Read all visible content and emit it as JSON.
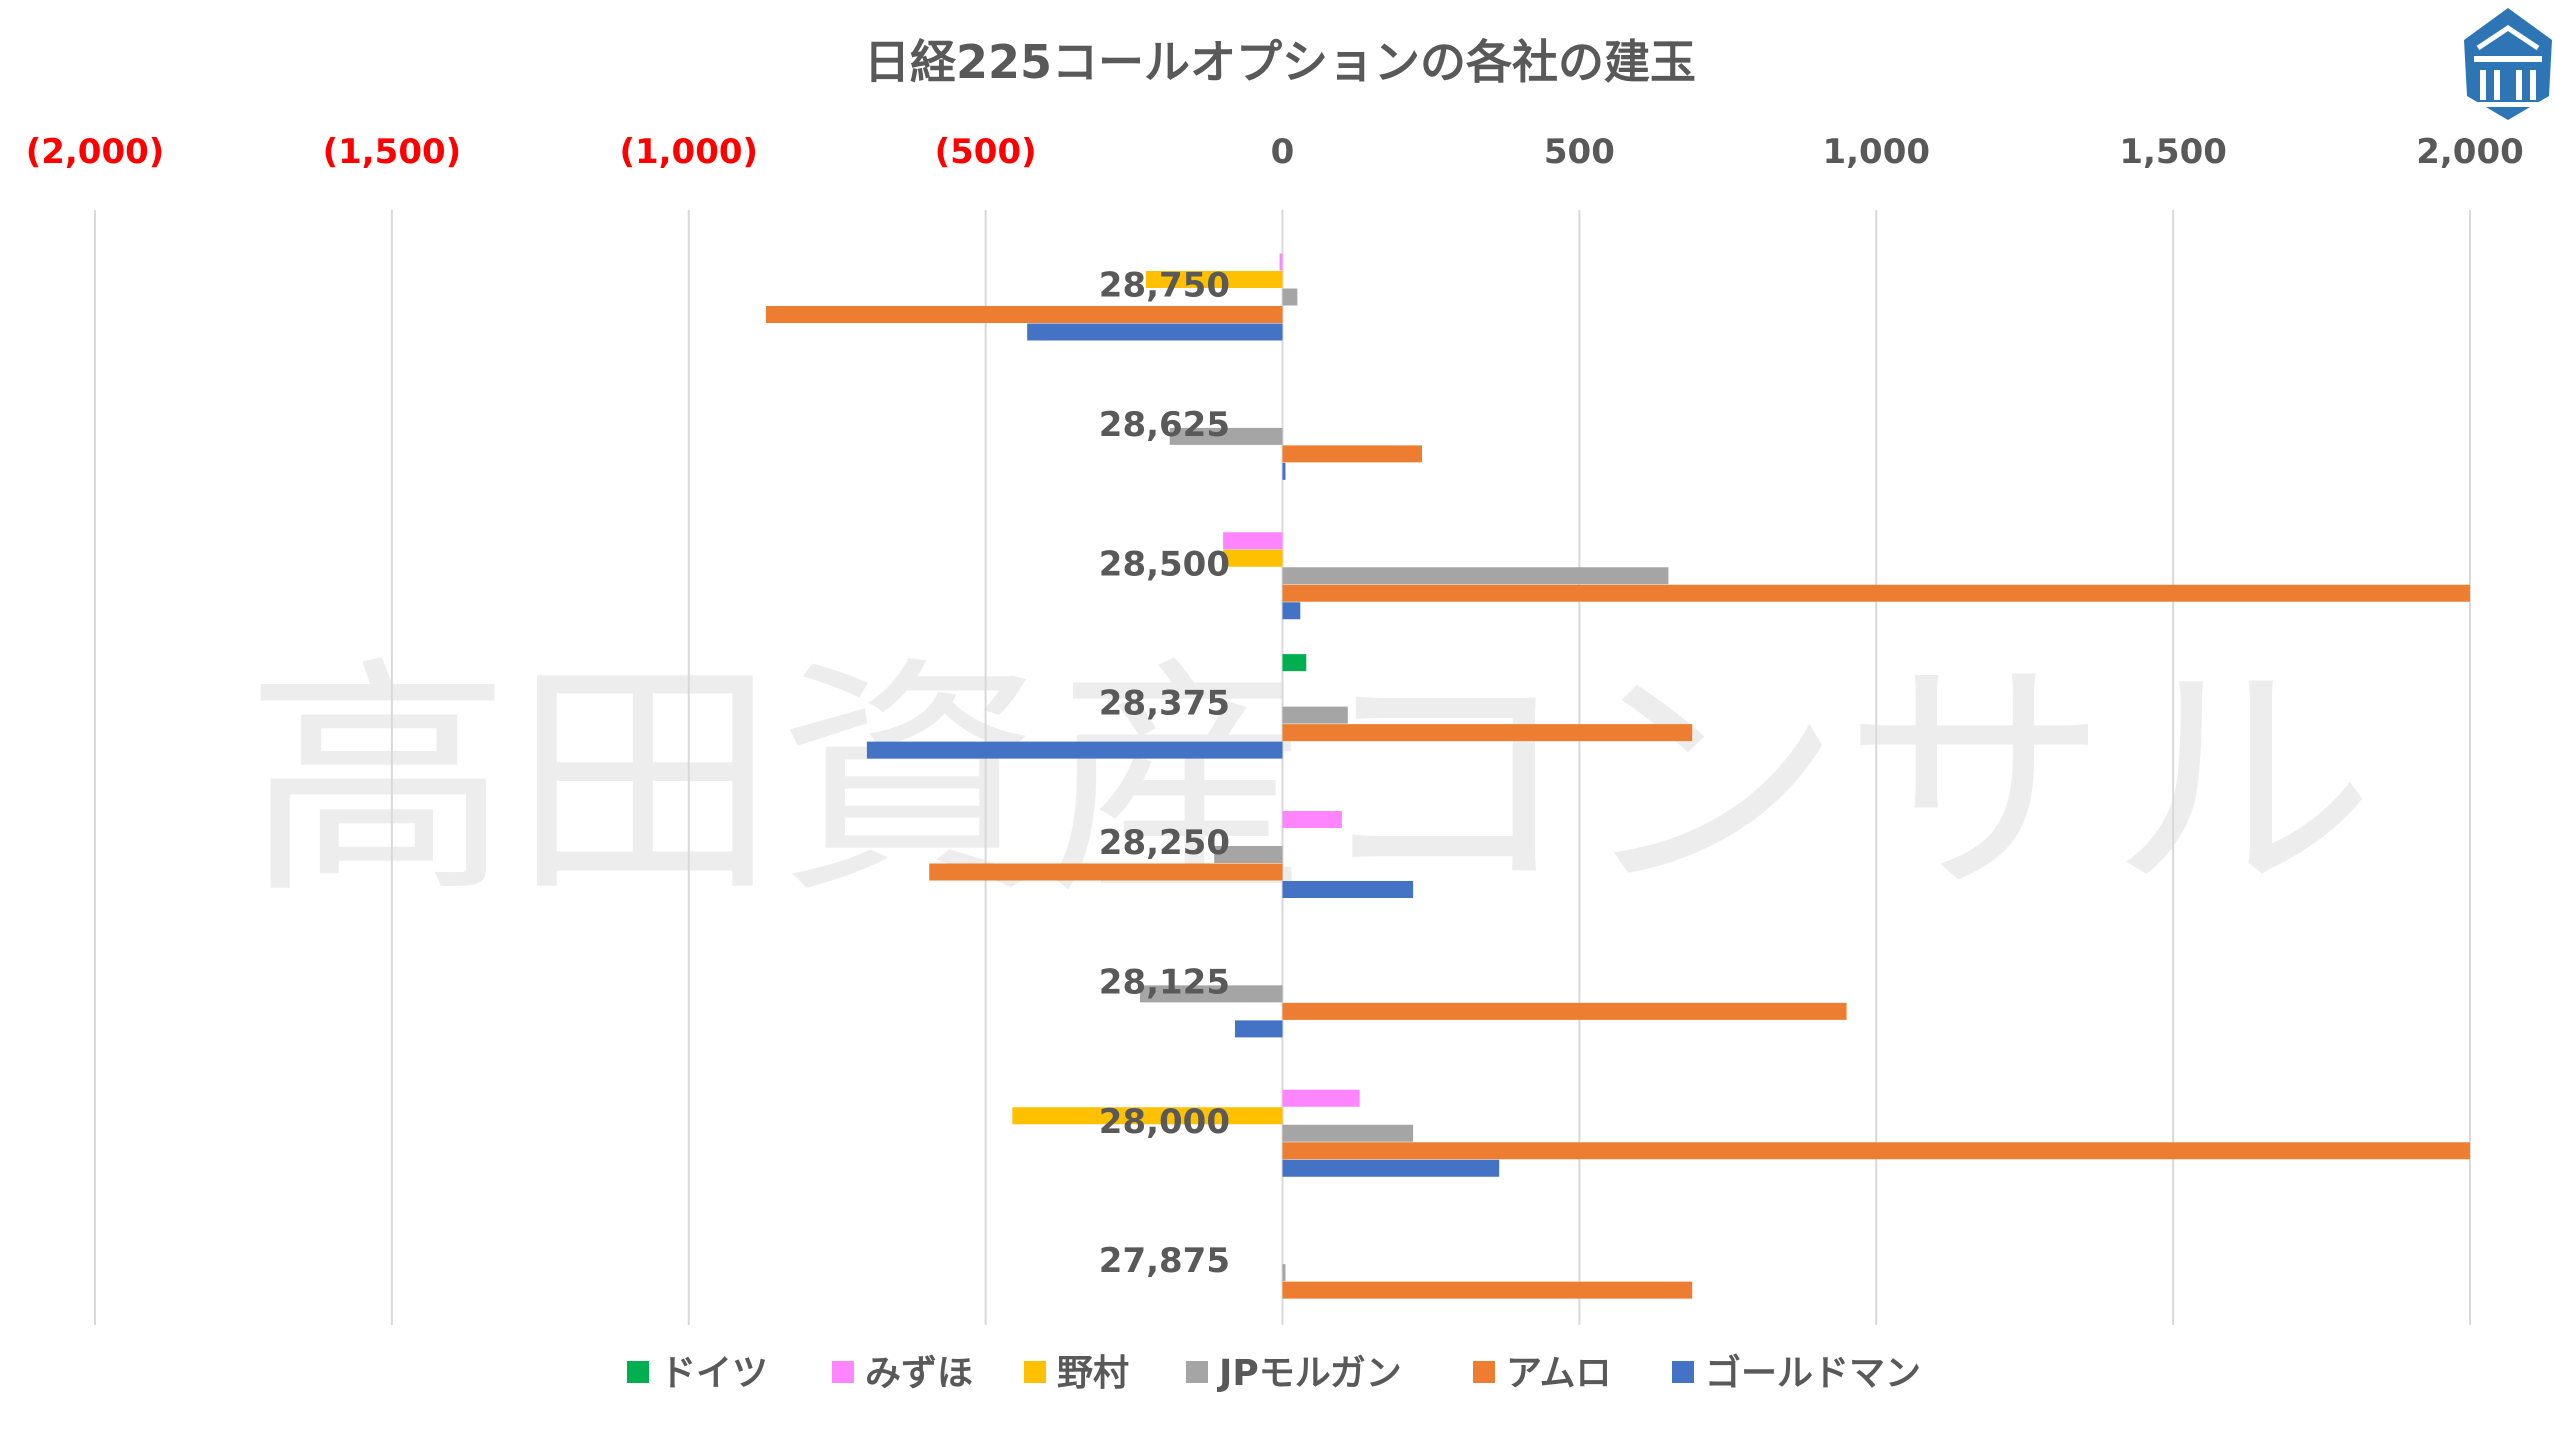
{
  "watermark": "高田資産コンサル",
  "chart_data": {
    "type": "bar",
    "orientation": "horizontal",
    "title": "日経225コールオプションの各社の建玉",
    "xlim": [
      -2000,
      2000
    ],
    "x_ticks": [
      {
        "value": -2000,
        "label": "(2,000)",
        "color": "#FF0000"
      },
      {
        "value": -1500,
        "label": "(1,500)",
        "color": "#FF0000"
      },
      {
        "value": -1000,
        "label": "(1,000)",
        "color": "#FF0000"
      },
      {
        "value": -500,
        "label": "(500)",
        "color": "#FF0000"
      },
      {
        "value": 0,
        "label": "0",
        "color": "#595959"
      },
      {
        "value": 500,
        "label": "500",
        "color": "#595959"
      },
      {
        "value": 1000,
        "label": "1,000",
        "color": "#595959"
      },
      {
        "value": 1500,
        "label": "1,500",
        "color": "#595959"
      },
      {
        "value": 2000,
        "label": "2,000",
        "color": "#595959"
      }
    ],
    "grid": true,
    "legend_position": "bottom",
    "categories": [
      "28,750",
      "28,625",
      "28,500",
      "28,375",
      "28,250",
      "28,125",
      "28,000",
      "27,875"
    ],
    "series": [
      {
        "name": "ドイツ",
        "color": "#00B050",
        "values": [
          0,
          0,
          0,
          40,
          0,
          0,
          0,
          0
        ]
      },
      {
        "name": "みずほ",
        "color": "#FF85FF",
        "values": [
          -5,
          0,
          -100,
          0,
          100,
          0,
          130,
          0
        ]
      },
      {
        "name": "野村",
        "color": "#FFC000",
        "values": [
          -230,
          0,
          -100,
          0,
          0,
          0,
          -455,
          0
        ]
      },
      {
        "name": "JPモルガン",
        "color": "#A5A5A5",
        "values": [
          25,
          -190,
          650,
          110,
          -115,
          -240,
          220,
          5
        ]
      },
      {
        "name": "アムロ",
        "color": "#ED7D31",
        "values": [
          -870,
          235,
          2000,
          690,
          -595,
          950,
          2000,
          690
        ]
      },
      {
        "name": "ゴールドマン",
        "color": "#4472C4",
        "values": [
          -430,
          5,
          30,
          -700,
          220,
          -80,
          365,
          0
        ]
      }
    ]
  }
}
